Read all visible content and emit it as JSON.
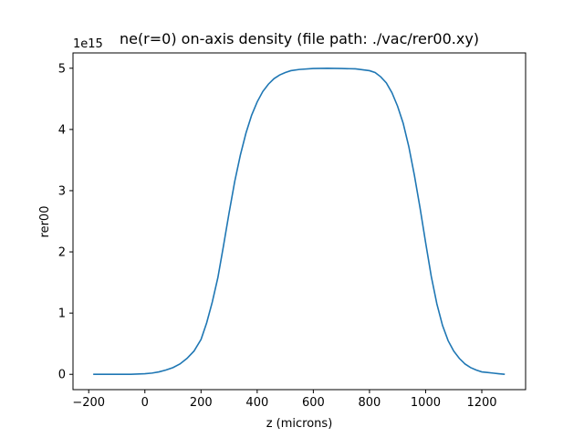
{
  "chart_data": {
    "type": "line",
    "title": "ne(r=0) on-axis density  (file path: ./vac/rer00.xy)",
    "xlabel": "z (microns)",
    "ylabel": "rer00",
    "y_offset_label": "1e15",
    "xlim": [
      -256,
      1356
    ],
    "ylim": [
      -0.25,
      5.25
    ],
    "xticks": [
      -200,
      0,
      200,
      400,
      600,
      800,
      1000,
      1200
    ],
    "xtick_labels": [
      "−200",
      "0",
      "200",
      "400",
      "600",
      "800",
      "1000",
      "1200"
    ],
    "yticks": [
      0,
      1,
      2,
      3,
      4,
      5
    ],
    "ytick_labels": [
      "0",
      "1",
      "2",
      "3",
      "4",
      "5"
    ],
    "grid": false,
    "legend": "none",
    "line_color": "#1f77b4",
    "series": [
      {
        "x": [
          -184,
          -150,
          -100,
          -50,
          0,
          25,
          50,
          75,
          100,
          125,
          150,
          175,
          200,
          220,
          240,
          260,
          280,
          300,
          320,
          340,
          360,
          380,
          400,
          420,
          440,
          460,
          480,
          500,
          520,
          550,
          600,
          650,
          700,
          750,
          800,
          820,
          840,
          860,
          880,
          900,
          920,
          940,
          960,
          980,
          1000,
          1020,
          1040,
          1060,
          1080,
          1100,
          1120,
          1140,
          1160,
          1180,
          1200,
          1220,
          1240,
          1260,
          1282
        ],
        "y": [
          0.0,
          0.0,
          0.0,
          0.0,
          0.01,
          0.02,
          0.04,
          0.07,
          0.11,
          0.17,
          0.26,
          0.38,
          0.57,
          0.84,
          1.18,
          1.58,
          2.1,
          2.64,
          3.15,
          3.58,
          3.94,
          4.23,
          4.45,
          4.62,
          4.74,
          4.83,
          4.89,
          4.93,
          4.96,
          4.98,
          4.995,
          5.0,
          4.995,
          4.99,
          4.96,
          4.93,
          4.86,
          4.76,
          4.6,
          4.38,
          4.1,
          3.72,
          3.25,
          2.72,
          2.15,
          1.6,
          1.15,
          0.8,
          0.55,
          0.38,
          0.26,
          0.17,
          0.11,
          0.07,
          0.04,
          0.03,
          0.02,
          0.01,
          0.0
        ]
      }
    ]
  }
}
